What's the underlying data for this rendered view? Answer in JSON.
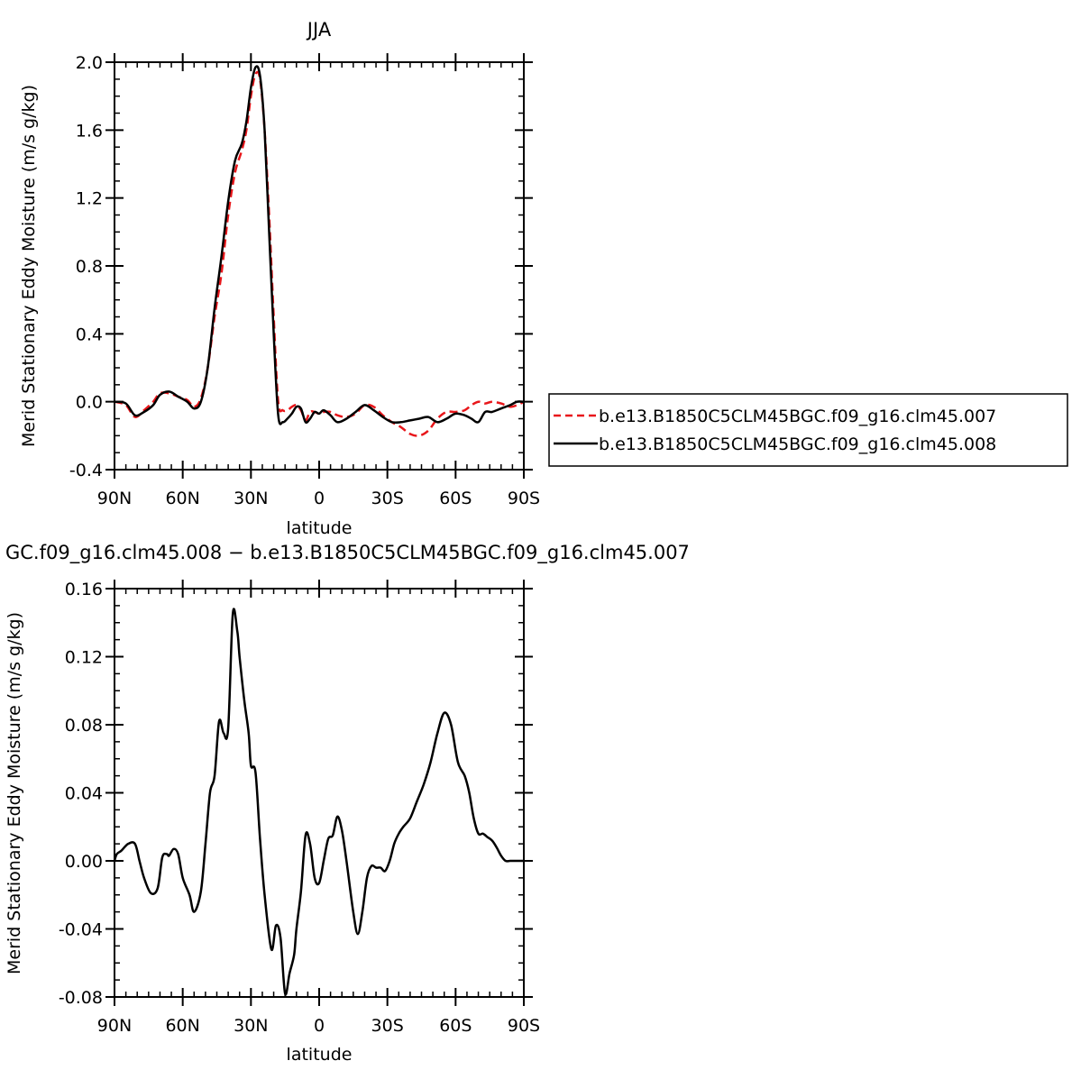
{
  "chart_data": [
    {
      "type": "line",
      "title": "JJA",
      "xlabel": "latitude",
      "ylabel": "Merid Stationary Eddy Moisture (m/s g/kg)",
      "x_ticks": [
        "90N",
        "60N",
        "30N",
        "0",
        "30S",
        "60S",
        "90S"
      ],
      "y_ticks": [
        "-0.4",
        "0.0",
        "0.4",
        "0.8",
        "1.2",
        "1.6",
        "2.0"
      ],
      "xlim": [
        90,
        -90
      ],
      "ylim": [
        -0.4,
        2.0
      ],
      "legend_position": "right",
      "grid": false,
      "series": [
        {
          "name": "b.e13.B1850C5CLM45BGC.f09_g16.clm45.007",
          "color": "#e8161a",
          "dash": "dashed",
          "x": [
            90,
            85,
            81,
            77,
            73,
            70,
            66,
            62,
            58,
            55,
            52,
            49,
            46,
            43,
            40,
            37,
            34,
            32,
            30,
            28,
            26,
            24,
            22,
            20,
            18,
            16,
            14,
            12,
            10,
            8,
            6,
            4,
            2,
            0,
            -2,
            -5,
            -8,
            -12,
            -16,
            -20,
            -24,
            -28,
            -32,
            -36,
            -40,
            -44,
            -48,
            -52,
            -56,
            -60,
            -64,
            -67,
            -70,
            -73,
            -76,
            -80,
            -84,
            -87,
            -90
          ],
          "y": [
            0.0,
            -0.02,
            -0.09,
            -0.05,
            0.0,
            0.05,
            0.05,
            0.03,
            0.01,
            -0.03,
            0.02,
            0.2,
            0.5,
            0.75,
            1.1,
            1.35,
            1.48,
            1.6,
            1.8,
            1.93,
            1.9,
            1.6,
            1.1,
            0.5,
            0.0,
            -0.05,
            -0.05,
            -0.03,
            -0.02,
            -0.05,
            -0.11,
            -0.06,
            -0.06,
            -0.07,
            -0.06,
            -0.06,
            -0.08,
            -0.09,
            -0.07,
            -0.02,
            -0.03,
            -0.08,
            -0.12,
            -0.15,
            -0.19,
            -0.2,
            -0.17,
            -0.1,
            -0.06,
            -0.06,
            -0.05,
            -0.02,
            0.0,
            -0.01,
            0.0,
            -0.01,
            -0.03,
            -0.02,
            0.0
          ]
        },
        {
          "name": "b.e13.B1850C5CLM45BGC.f09_g16.clm45.008",
          "color": "#000000",
          "dash": "solid",
          "x": [
            90,
            85,
            81,
            77,
            73,
            70,
            66,
            62,
            58,
            55,
            52,
            49,
            46,
            43,
            40,
            37,
            34,
            32,
            30,
            28,
            26,
            24,
            22,
            20,
            18,
            16,
            14,
            12,
            10,
            8,
            6,
            4,
            2,
            0,
            -2,
            -5,
            -8,
            -12,
            -16,
            -20,
            -24,
            -28,
            -32,
            -36,
            -40,
            -44,
            -48,
            -52,
            -56,
            -60,
            -64,
            -67,
            -70,
            -73,
            -76,
            -80,
            -84,
            -87,
            -90
          ],
          "y": [
            0.0,
            -0.01,
            -0.08,
            -0.06,
            -0.02,
            0.04,
            0.06,
            0.03,
            0.0,
            -0.04,
            0.0,
            0.2,
            0.55,
            0.85,
            1.18,
            1.42,
            1.52,
            1.65,
            1.85,
            1.97,
            1.92,
            1.6,
            1.0,
            0.4,
            -0.08,
            -0.12,
            -0.1,
            -0.07,
            -0.03,
            -0.04,
            -0.12,
            -0.1,
            -0.06,
            -0.07,
            -0.05,
            -0.08,
            -0.12,
            -0.1,
            -0.06,
            -0.02,
            -0.05,
            -0.09,
            -0.12,
            -0.12,
            -0.11,
            -0.1,
            -0.09,
            -0.12,
            -0.1,
            -0.07,
            -0.08,
            -0.1,
            -0.12,
            -0.06,
            -0.06,
            -0.04,
            -0.02,
            0.0,
            0.0
          ]
        }
      ]
    },
    {
      "type": "line",
      "title": "GC.f09_g16.clm45.008 − b.e13.B1850C5CLM45BGC.f09_g16.clm45.007",
      "xlabel": "latitude",
      "ylabel": "Merid Stationary Eddy Moisture (m/s g/kg)",
      "x_ticks": [
        "90N",
        "60N",
        "30N",
        "0",
        "30S",
        "60S",
        "90S"
      ],
      "y_ticks": [
        "-0.08",
        "-0.04",
        "0.00",
        "0.04",
        "0.08",
        "0.12",
        "0.16"
      ],
      "xlim": [
        90,
        -90
      ],
      "ylim": [
        -0.08,
        0.16
      ],
      "grid": false,
      "series": [
        {
          "color": "#000000",
          "dash": "solid",
          "x": [
            90,
            89,
            87,
            84,
            81,
            79,
            77,
            74,
            71,
            69,
            67,
            66,
            64,
            62,
            60,
            57,
            55,
            52,
            50,
            48,
            46,
            44,
            42,
            40,
            38,
            36,
            35,
            33,
            31,
            30,
            28,
            26,
            24,
            21,
            19,
            17,
            15,
            13,
            11,
            10,
            8,
            6,
            4,
            2,
            0,
            -2,
            -4,
            -6,
            -8,
            -10,
            -12,
            -15,
            -17,
            -19,
            -21,
            -23,
            -25,
            -27,
            -29,
            -31,
            -33,
            -35,
            -37,
            -40,
            -43,
            -46,
            -49,
            -52,
            -55,
            -58,
            -61,
            -64,
            -66,
            -68,
            -70,
            -72,
            -74,
            -76,
            -78,
            -80,
            -82,
            -84,
            -87,
            -90
          ],
          "y": [
            0.0,
            0.004,
            0.006,
            0.01,
            0.01,
            0.0,
            -0.01,
            -0.019,
            -0.016,
            0.002,
            0.004,
            0.003,
            0.007,
            0.004,
            -0.01,
            -0.02,
            -0.03,
            -0.018,
            0.01,
            0.04,
            0.05,
            0.082,
            0.075,
            0.078,
            0.145,
            0.135,
            0.12,
            0.095,
            0.075,
            0.056,
            0.052,
            0.013,
            -0.02,
            -0.052,
            -0.038,
            -0.045,
            -0.078,
            -0.066,
            -0.055,
            -0.04,
            -0.018,
            0.015,
            0.01,
            -0.01,
            -0.013,
            0.0,
            0.013,
            0.015,
            0.026,
            0.018,
            0.0,
            -0.03,
            -0.043,
            -0.03,
            -0.01,
            -0.003,
            -0.004,
            -0.004,
            -0.006,
            0.0,
            0.01,
            0.016,
            0.02,
            0.025,
            0.035,
            0.045,
            0.058,
            0.075,
            0.087,
            0.08,
            0.058,
            0.05,
            0.04,
            0.025,
            0.016,
            0.016,
            0.014,
            0.012,
            0.008,
            0.003,
            0.0,
            0.0,
            0.0,
            0.0
          ]
        }
      ]
    }
  ]
}
